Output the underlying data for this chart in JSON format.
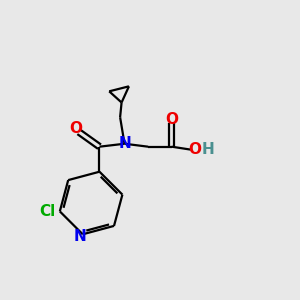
{
  "background_color": "#e8e8e8",
  "bond_color": "#000000",
  "N_color": "#0000ee",
  "O_color": "#ee0000",
  "Cl_color": "#00aa00",
  "H_color": "#4a9090",
  "line_width": 1.6,
  "font_size": 11,
  "figsize": [
    3.0,
    3.0
  ],
  "dpi": 100,
  "xlim": [
    0,
    10
  ],
  "ylim": [
    0,
    10
  ]
}
